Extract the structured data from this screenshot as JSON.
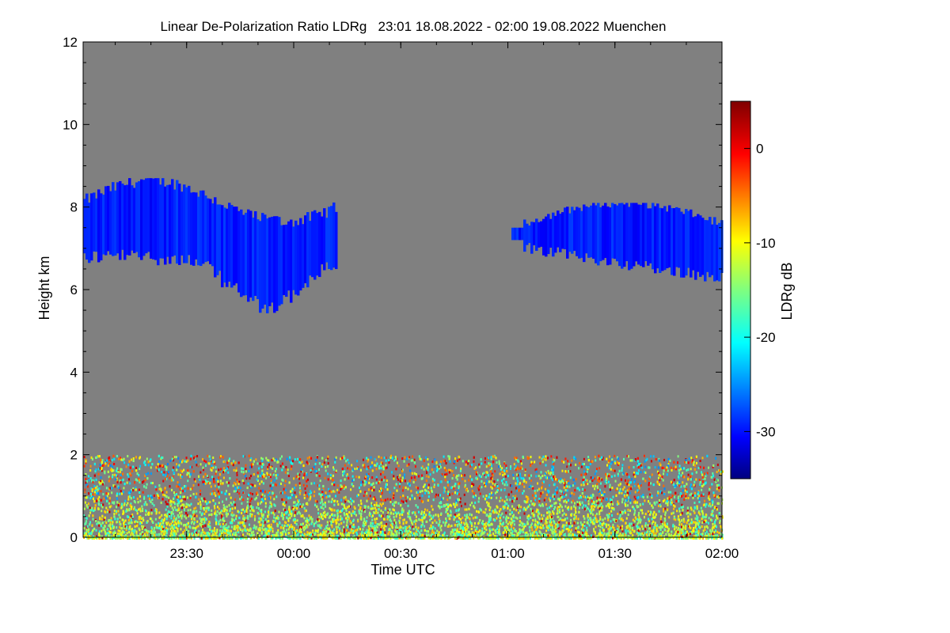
{
  "chart_data": {
    "type": "heatmap",
    "title": "Linear De-Polarization Ratio LDRg   23:01 18.08.2022 - 02:00 19.08.2022 Muenchen",
    "xlabel": "Time UTC",
    "ylabel": "Height km",
    "x_range": [
      "23:01",
      "02:00"
    ],
    "xticks": [
      {
        "t": "23:30",
        "label": "23:30"
      },
      {
        "t": "00:00",
        "label": "00:00"
      },
      {
        "t": "00:30",
        "label": "00:30"
      },
      {
        "t": "01:00",
        "label": "01:00"
      },
      {
        "t": "01:30",
        "label": "01:30"
      },
      {
        "t": "02:00",
        "label": "02:00"
      }
    ],
    "ylim": [
      0,
      12
    ],
    "yticks": [
      0,
      2,
      4,
      6,
      8,
      10,
      12
    ],
    "grid": false,
    "no_data_color": "#808080",
    "colorbar": {
      "label": "LDRg dB",
      "range": [
        -35,
        5
      ],
      "ticks": [
        0,
        -10,
        -20,
        -30
      ],
      "colormap": "jet"
    },
    "features": [
      {
        "name": "ice cloud",
        "t_start": "23:01",
        "t_end": "00:12",
        "h_bottom": 5.4,
        "h_top": 8.7,
        "ldr_db": -29
      },
      {
        "name": "ice cloud",
        "t_start": "01:01",
        "t_end": "02:00",
        "h_bottom": 6.2,
        "h_top": 8.1,
        "ldr_db": -29
      },
      {
        "name": "boundary layer",
        "t_start": "23:01",
        "t_end": "02:00",
        "h_bottom": 0.0,
        "h_top": 2.0,
        "ldr_db_range": [
          -25,
          2
        ],
        "dominant_ldr_db": -13
      }
    ]
  }
}
